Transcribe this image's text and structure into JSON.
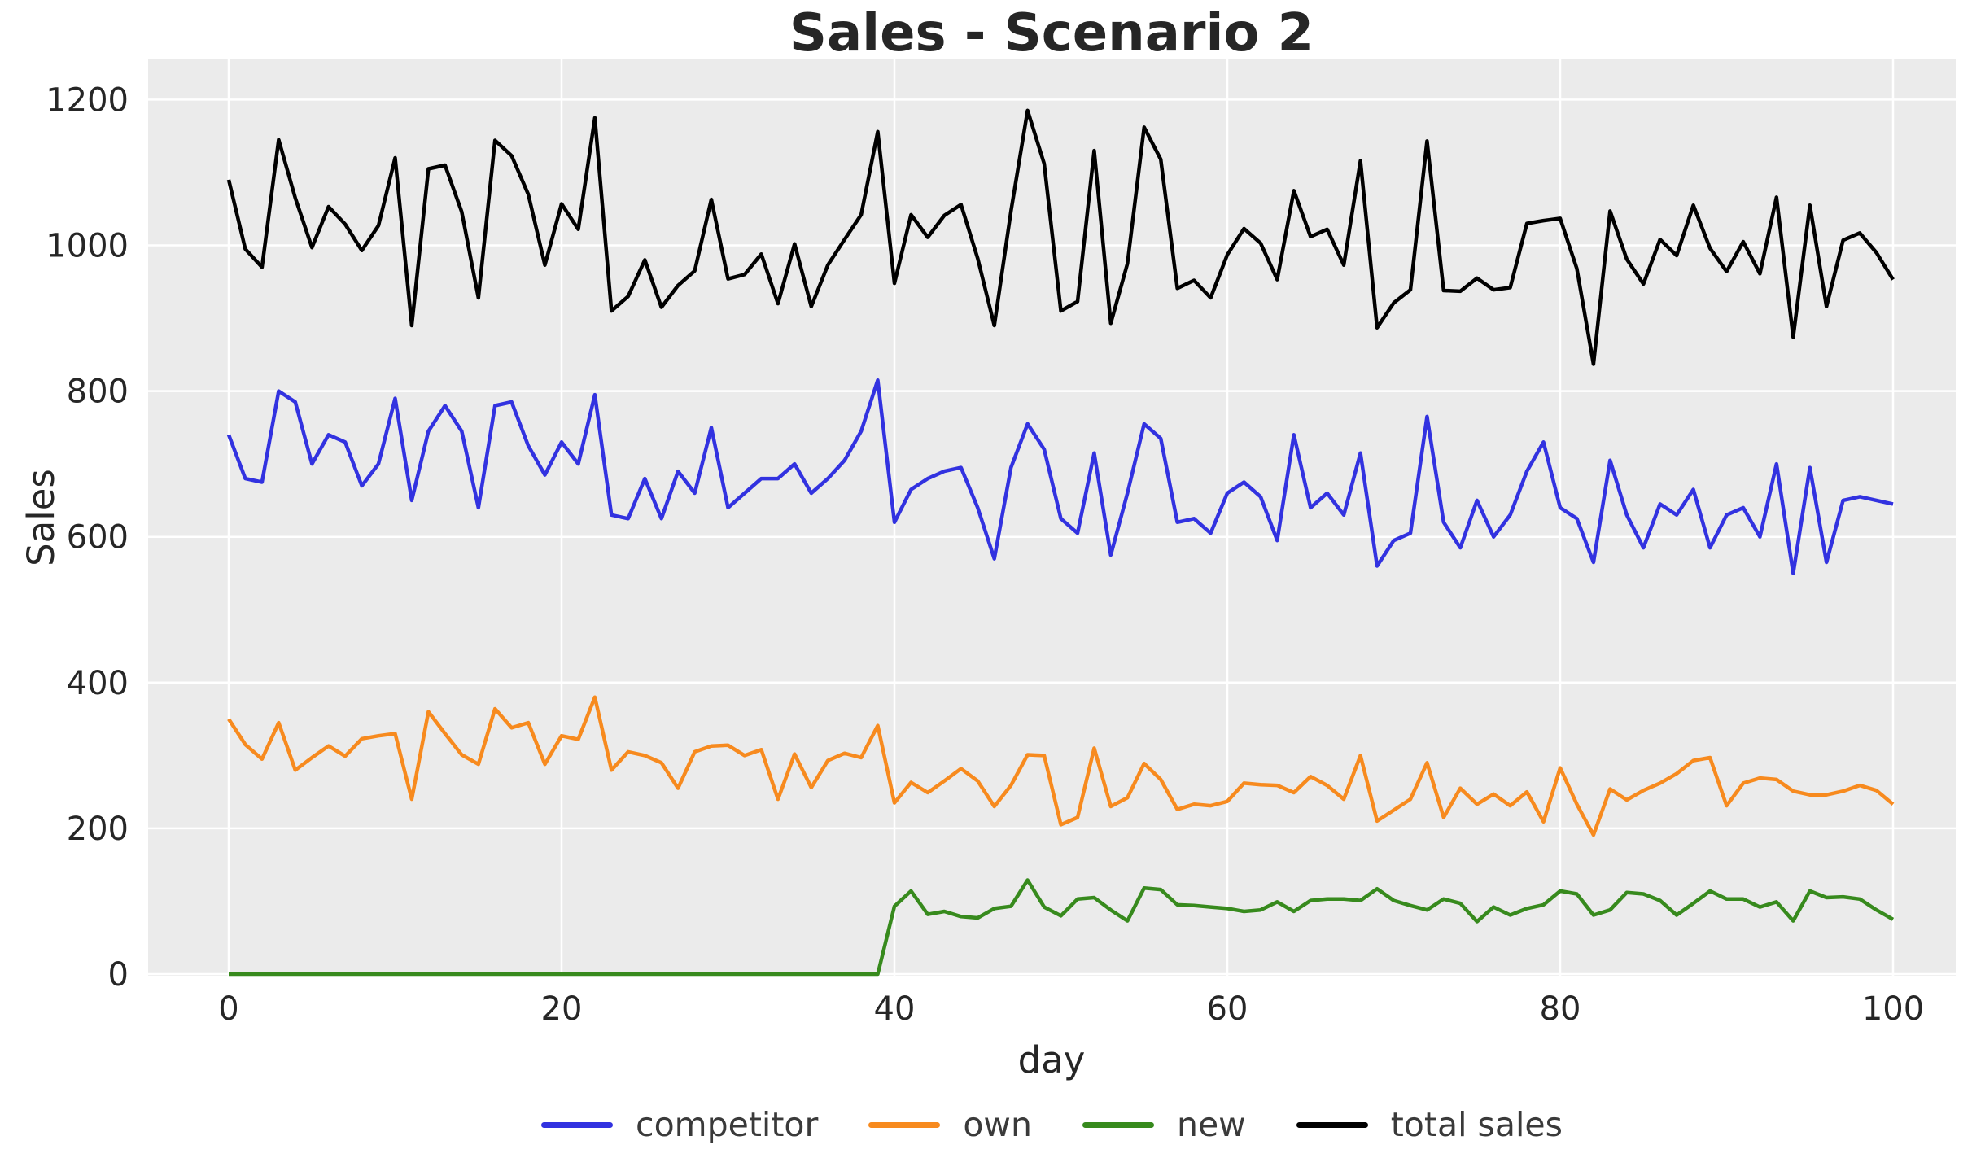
{
  "title": "Sales - Scenario 2",
  "axes": {
    "xlabel": "day",
    "ylabel": "Sales",
    "x_ticks": [
      0,
      20,
      40,
      60,
      80,
      100
    ],
    "y_ticks": [
      0,
      200,
      400,
      600,
      800,
      1000,
      1200
    ]
  },
  "legend": {
    "items": [
      {
        "label": "competitor",
        "color": "#3232e0"
      },
      {
        "label": "own",
        "color": "#f78a1e"
      },
      {
        "label": "new",
        "color": "#378a1d"
      },
      {
        "label": "total sales",
        "color": "#000000"
      }
    ]
  },
  "colors": {
    "figure_bg": "#ffffff",
    "plot_bg": "#ebebeb",
    "grid": "#ffffff",
    "text": "#262626",
    "legend_text": "#3a3a3a"
  },
  "chart_data": {
    "type": "line",
    "title": "Sales - Scenario 2",
    "xlabel": "day",
    "ylabel": "Sales",
    "xlim": [
      -4.8,
      103.8
    ],
    "ylim": [
      0,
      1255
    ],
    "grid": true,
    "legend_position": "bottom-center",
    "x": [
      0,
      1,
      2,
      3,
      4,
      5,
      6,
      7,
      8,
      9,
      10,
      11,
      12,
      13,
      14,
      15,
      16,
      17,
      18,
      19,
      20,
      21,
      22,
      23,
      24,
      25,
      26,
      27,
      28,
      29,
      30,
      31,
      32,
      33,
      34,
      35,
      36,
      37,
      38,
      39,
      40,
      41,
      42,
      43,
      44,
      45,
      46,
      47,
      48,
      49,
      50,
      51,
      52,
      53,
      54,
      55,
      56,
      57,
      58,
      59,
      60,
      61,
      62,
      63,
      64,
      65,
      66,
      67,
      68,
      69,
      70,
      71,
      72,
      73,
      74,
      75,
      76,
      77,
      78,
      79,
      80,
      81,
      82,
      83,
      84,
      85,
      86,
      87,
      88,
      89,
      90,
      91,
      92,
      93,
      94,
      95,
      96,
      97,
      98,
      99,
      100
    ],
    "series": [
      {
        "name": "competitor",
        "color": "#3232e0",
        "values": [
          740,
          680,
          675,
          800,
          785,
          700,
          740,
          730,
          670,
          700,
          790,
          650,
          745,
          780,
          745,
          640,
          780,
          785,
          725,
          685,
          730,
          700,
          795,
          630,
          625,
          680,
          625,
          690,
          660,
          750,
          640,
          660,
          680,
          680,
          700,
          660,
          680,
          705,
          745,
          815,
          620,
          665,
          680,
          690,
          695,
          640,
          570,
          695,
          755,
          720,
          625,
          605,
          715,
          575,
          660,
          755,
          735,
          620,
          625,
          605,
          660,
          675,
          655,
          595,
          740,
          640,
          660,
          630,
          715,
          560,
          595,
          605,
          765,
          620,
          585,
          650,
          600,
          630,
          690,
          730,
          640,
          625,
          565,
          705,
          630,
          585,
          645,
          630,
          665,
          585,
          630,
          640,
          600,
          700,
          550,
          695,
          565,
          650,
          655,
          650,
          645
        ]
      },
      {
        "name": "own",
        "color": "#f78a1e",
        "values": [
          350,
          315,
          295,
          345,
          280,
          297,
          313,
          299,
          323,
          327,
          330,
          240,
          360,
          330,
          301,
          288,
          364,
          338,
          345,
          288,
          327,
          322,
          380,
          280,
          305,
          300,
          290,
          255,
          305,
          313,
          314,
          300,
          308,
          240,
          302,
          256,
          293,
          303,
          297,
          341,
          235,
          263,
          249,
          265,
          282,
          265,
          230,
          259,
          301,
          300,
          205,
          215,
          310,
          230,
          242,
          289,
          267,
          226,
          233,
          231,
          237,
          262,
          260,
          259,
          249,
          271,
          259,
          240,
          300,
          210,
          225,
          240,
          290,
          215,
          255,
          233,
          247,
          231,
          250,
          209,
          283,
          233,
          191,
          254,
          239,
          252,
          262,
          275,
          293,
          297,
          231,
          262,
          269,
          267,
          251,
          246,
          246,
          251,
          259,
          252,
          233
        ]
      },
      {
        "name": "new",
        "color": "#378a1d",
        "values": [
          0,
          0,
          0,
          0,
          0,
          0,
          0,
          0,
          0,
          0,
          0,
          0,
          0,
          0,
          0,
          0,
          0,
          0,
          0,
          0,
          0,
          0,
          0,
          0,
          0,
          0,
          0,
          0,
          0,
          0,
          0,
          0,
          0,
          0,
          0,
          0,
          0,
          0,
          0,
          0,
          93,
          114,
          82,
          86,
          79,
          77,
          90,
          93,
          129,
          92,
          80,
          103,
          105,
          88,
          73,
          118,
          116,
          95,
          94,
          92,
          90,
          86,
          88,
          99,
          86,
          101,
          103,
          103,
          101,
          117,
          101,
          94,
          88,
          103,
          97,
          72,
          92,
          81,
          90,
          95,
          114,
          110,
          81,
          88,
          112,
          110,
          101,
          81,
          97,
          114,
          103,
          103,
          92,
          99,
          73,
          114,
          105,
          106,
          103,
          88,
          75
        ]
      },
      {
        "name": "total sales",
        "color": "#000000",
        "values": [
          1090,
          995,
          970,
          1145,
          1065,
          997,
          1053,
          1029,
          993,
          1027,
          1120,
          890,
          1105,
          1110,
          1046,
          928,
          1144,
          1123,
          1070,
          973,
          1057,
          1022,
          1175,
          910,
          930,
          980,
          915,
          945,
          965,
          1063,
          954,
          960,
          988,
          920,
          1002,
          916,
          973,
          1008,
          1042,
          1156,
          948,
          1042,
          1011,
          1041,
          1056,
          982,
          890,
          1047,
          1185,
          1112,
          910,
          923,
          1130,
          893,
          975,
          1162,
          1118,
          941,
          952,
          928,
          987,
          1023,
          1003,
          953,
          1075,
          1012,
          1022,
          973,
          1116,
          887,
          921,
          939,
          1143,
          938,
          937,
          955,
          939,
          942,
          1030,
          1034,
          1037,
          968,
          837,
          1047,
          981,
          947,
          1008,
          986,
          1055,
          996,
          964,
          1005,
          961,
          1066,
          874,
          1055,
          916,
          1007,
          1017,
          990,
          953
        ]
      }
    ]
  }
}
